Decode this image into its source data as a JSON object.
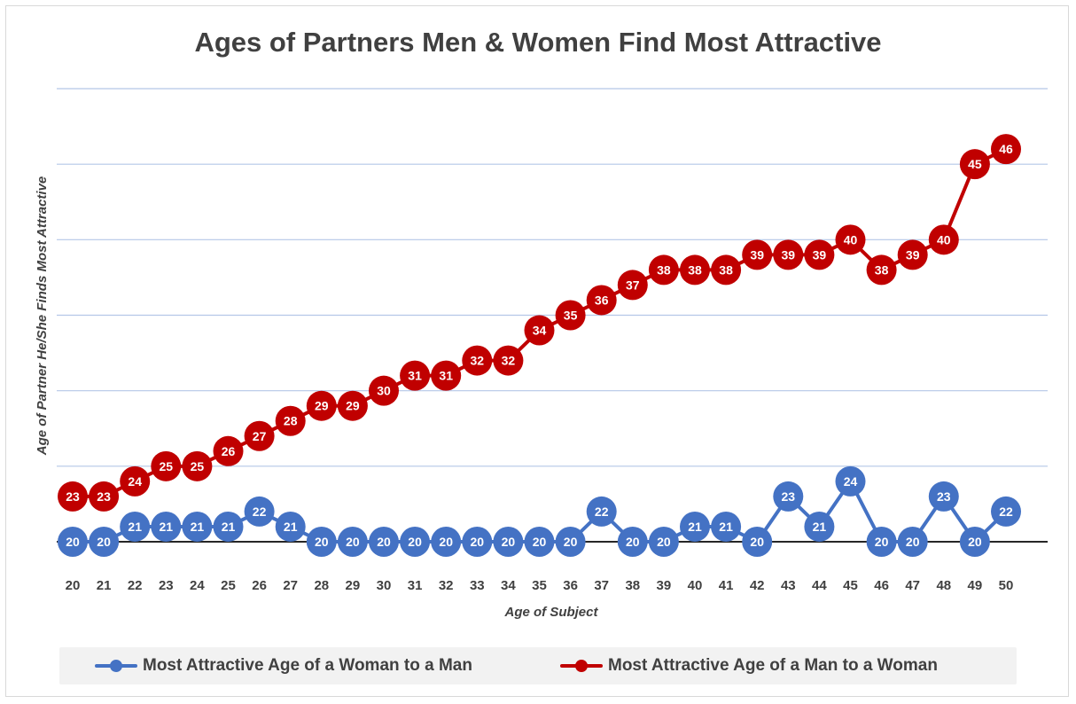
{
  "chart_data": {
    "type": "line",
    "title": "Ages of Partners Men & Women Find Most Attractive",
    "xlabel": "Age of Subject",
    "ylabel": "Age of Partner He/She Finds Most Attractive",
    "x": [
      20,
      21,
      22,
      23,
      24,
      25,
      26,
      27,
      28,
      29,
      30,
      31,
      32,
      33,
      34,
      35,
      36,
      37,
      38,
      39,
      40,
      41,
      42,
      43,
      44,
      45,
      46,
      47,
      48,
      49,
      50
    ],
    "ylim": [
      20,
      50
    ],
    "y_gridlines": [
      20,
      25,
      30,
      35,
      40,
      45,
      50
    ],
    "y_tick_labels_shown": false,
    "grid": true,
    "legend_position": "bottom",
    "series": [
      {
        "name": "Most Attractive Age of a Woman to a Man",
        "color": "#4472c4",
        "values": [
          20,
          20,
          21,
          21,
          21,
          21,
          22,
          21,
          20,
          20,
          20,
          20,
          20,
          20,
          20,
          20,
          20,
          22,
          20,
          20,
          21,
          21,
          20,
          23,
          21,
          24,
          20,
          20,
          23,
          20,
          22
        ]
      },
      {
        "name": "Most Attractive Age of a Man to a Woman",
        "color": "#c00000",
        "values": [
          23,
          23,
          24,
          25,
          25,
          26,
          27,
          28,
          29,
          29,
          30,
          31,
          31,
          32,
          32,
          34,
          35,
          36,
          37,
          38,
          38,
          38,
          39,
          39,
          39,
          40,
          38,
          39,
          40,
          45,
          46
        ]
      }
    ]
  }
}
